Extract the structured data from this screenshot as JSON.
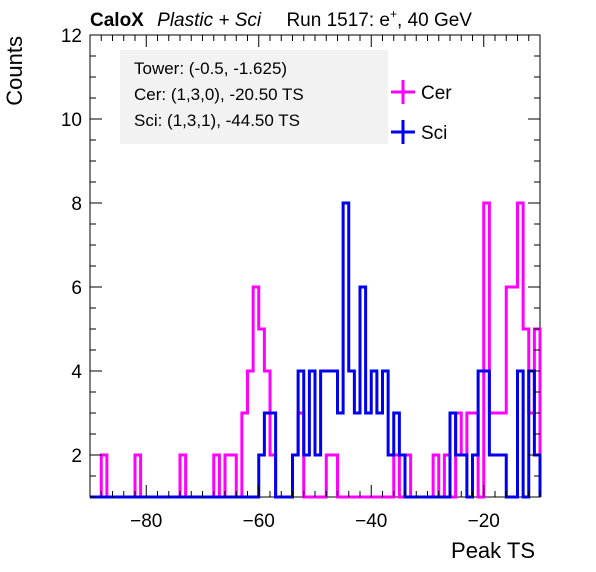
{
  "header": {
    "brand": "CaloX",
    "config": "Plastic + Sci",
    "run_prefix": "Run 1517: e",
    "run_sup": "+",
    "run_suffix": ", 40 GeV"
  },
  "info": {
    "line1": "Tower: (-0.5, -1.625)",
    "line2": "Cer: (1,3,0), -20.50 TS",
    "line3": "Sci: (1,3,1), -44.50 TS"
  },
  "chart_data": {
    "type": "line",
    "xlabel": "Peak TS",
    "ylabel": "Counts",
    "xlim": [
      -90,
      -10
    ],
    "ylim": [
      1,
      12
    ],
    "xticks": [
      -80,
      -60,
      -40,
      -20
    ],
    "yticks": [
      2,
      4,
      6,
      8,
      10,
      12
    ],
    "bins": {
      "start": -90,
      "width": 1,
      "count": 80
    },
    "legend_position": "top-right",
    "series": [
      {
        "name": "Cer",
        "color": "#ff00ff",
        "values": [
          1,
          1,
          2,
          1,
          1,
          1,
          1,
          1,
          2,
          1,
          1,
          1,
          1,
          1,
          1,
          1,
          2,
          1,
          1,
          1,
          1,
          1,
          2,
          1,
          2,
          2,
          1,
          3,
          4,
          6,
          5,
          4,
          2,
          1,
          1,
          1,
          2,
          3,
          1,
          1,
          1,
          1,
          2,
          2,
          1,
          1,
          1,
          1,
          1,
          1,
          1,
          1,
          1,
          1,
          2,
          1,
          2,
          1,
          1,
          1,
          1,
          2,
          1,
          2,
          1,
          3,
          2,
          3,
          3,
          1,
          8,
          3,
          3,
          3,
          6,
          6,
          8,
          5,
          3,
          5
        ]
      },
      {
        "name": "Sci",
        "color": "#0000ee",
        "values": [
          1,
          1,
          1,
          1,
          1,
          1,
          1,
          1,
          1,
          1,
          1,
          1,
          1,
          1,
          1,
          1,
          1,
          1,
          1,
          1,
          1,
          1,
          1,
          1,
          1,
          1,
          1,
          1,
          1,
          1,
          2,
          3,
          3,
          1,
          1,
          1,
          2,
          4,
          2,
          4,
          2,
          4,
          4,
          4,
          3,
          8,
          4,
          3,
          6,
          3,
          4,
          3,
          4,
          2,
          3,
          2,
          1,
          1,
          1,
          1,
          1,
          1,
          1,
          1,
          3,
          2,
          2,
          1,
          2,
          4,
          4,
          2,
          2,
          2,
          1,
          1,
          4,
          1,
          4,
          2
        ]
      }
    ]
  }
}
